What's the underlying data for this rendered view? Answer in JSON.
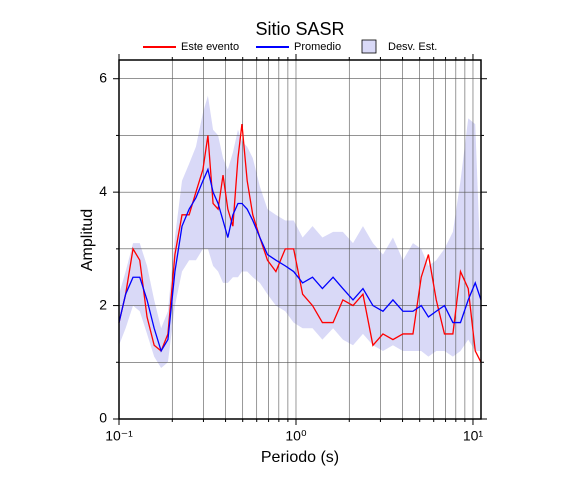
{
  "chart_data": {
    "type": "line",
    "title": "Sitio SASR",
    "x_label": "Periodo (s)",
    "y_label": "Amplitud",
    "log_x": true,
    "grid": true,
    "legend": "top",
    "xlim": [
      0.1,
      11.1
    ],
    "ylim": [
      0,
      6.33
    ],
    "xticks": [
      {
        "value": 0.1,
        "label": "10⁻¹"
      },
      {
        "value": 1,
        "label": "10⁰"
      },
      {
        "value": 10,
        "label": "10¹"
      }
    ],
    "xminor_ticks": [
      0.2,
      0.3,
      0.4,
      0.5,
      0.6,
      0.7,
      0.8,
      0.9,
      2,
      3,
      4,
      5,
      6,
      7,
      8,
      9
    ],
    "yticks": [
      0,
      2,
      4,
      6
    ],
    "yminor_ticks": [
      1,
      3,
      5
    ],
    "x": [
      0.1,
      0.109,
      0.12,
      0.131,
      0.144,
      0.158,
      0.173,
      0.189,
      0.207,
      0.227,
      0.249,
      0.272,
      0.298,
      0.318,
      0.34,
      0.363,
      0.387,
      0.412,
      0.44,
      0.47,
      0.495,
      0.53,
      0.57,
      0.625,
      0.69,
      0.77,
      0.87,
      0.97,
      1.09,
      1.24,
      1.41,
      1.62,
      1.84,
      2.1,
      2.39,
      2.72,
      3.1,
      3.53,
      4.02,
      4.58,
      5.1,
      5.6,
      6.2,
      6.9,
      7.7,
      8.5,
      9.4,
      10.3,
      11.1
    ],
    "band": {
      "name": "Desv. Est.",
      "color": "#d9d9f7",
      "lower": [
        1.3,
        1.6,
        2.0,
        1.9,
        1.5,
        1.1,
        0.9,
        1.0,
        2.0,
        2.6,
        2.8,
        2.8,
        3.0,
        3.0,
        2.7,
        2.6,
        2.4,
        2.4,
        2.5,
        2.5,
        2.6,
        2.6,
        2.5,
        2.4,
        2.2,
        2.0,
        1.9,
        1.7,
        1.6,
        1.6,
        1.4,
        1.6,
        1.4,
        1.3,
        1.5,
        1.3,
        1.2,
        1.3,
        1.2,
        1.2,
        1.2,
        1.1,
        1.2,
        1.2,
        1.1,
        1.2,
        1.4,
        1.2,
        1.2
      ],
      "upper": [
        2.2,
        2.6,
        3.1,
        3.1,
        2.7,
        2.1,
        1.6,
        1.9,
        3.2,
        4.2,
        4.5,
        4.8,
        5.4,
        5.7,
        5.1,
        5.0,
        4.6,
        4.4,
        4.7,
        5.1,
        4.9,
        4.8,
        4.6,
        4.1,
        3.7,
        3.6,
        3.5,
        3.5,
        3.2,
        3.4,
        3.2,
        3.3,
        3.3,
        3.1,
        3.4,
        3.1,
        2.9,
        3.2,
        2.8,
        3.1,
        3.0,
        2.7,
        2.8,
        3.0,
        3.3,
        4.2,
        5.3,
        5.2,
        2.5
      ]
    },
    "series": [
      {
        "name": "Este evento",
        "color": "#ff0000",
        "values": [
          1.7,
          2.2,
          3.0,
          2.8,
          1.8,
          1.3,
          1.2,
          1.5,
          2.9,
          3.6,
          3.6,
          4.0,
          4.4,
          5.0,
          3.8,
          3.7,
          4.3,
          3.7,
          3.4,
          4.6,
          5.2,
          4.2,
          3.6,
          3.2,
          2.8,
          2.6,
          3.0,
          3.0,
          2.2,
          2.0,
          1.7,
          1.7,
          2.1,
          2.0,
          2.2,
          1.3,
          1.5,
          1.4,
          1.5,
          1.5,
          2.5,
          2.9,
          2.1,
          1.5,
          1.5,
          2.6,
          2.3,
          1.2,
          1.0
        ]
      },
      {
        "name": "Promedio",
        "color": "#0000ff",
        "values": [
          1.7,
          2.2,
          2.5,
          2.5,
          2.1,
          1.6,
          1.2,
          1.4,
          2.6,
          3.4,
          3.7,
          3.9,
          4.2,
          4.4,
          4.0,
          3.8,
          3.5,
          3.2,
          3.6,
          3.8,
          3.8,
          3.7,
          3.5,
          3.2,
          2.9,
          2.8,
          2.7,
          2.6,
          2.4,
          2.5,
          2.3,
          2.5,
          2.3,
          2.1,
          2.3,
          2.0,
          1.9,
          2.1,
          1.9,
          1.9,
          2.0,
          1.8,
          1.9,
          2.0,
          1.7,
          1.7,
          2.1,
          2.4,
          2.1
        ]
      }
    ]
  }
}
